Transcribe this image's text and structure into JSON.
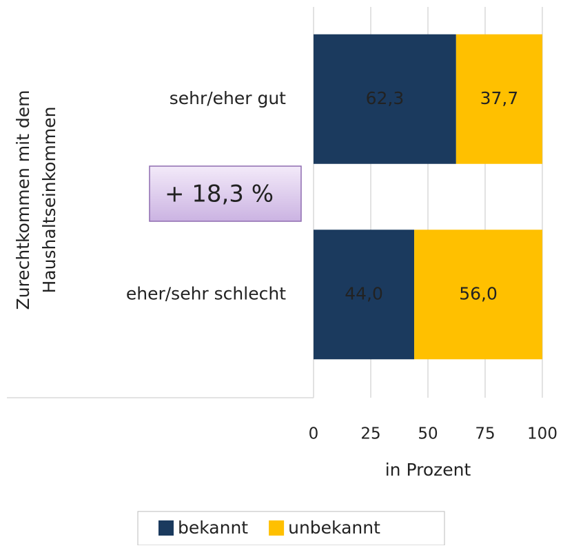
{
  "chart_data": {
    "type": "stacked_barh",
    "ylabel": [
      "Zurechtkommen mit dem",
      "Haushaltseinkommen"
    ],
    "xlabel": "in Prozent",
    "annotation": "+ 18,3 %",
    "categories": [
      "sehr/eher gut",
      "eher/sehr schlecht"
    ],
    "series": [
      {
        "name": "bekannt",
        "color": "#1b3a5e",
        "values": [
          62.3,
          44.0
        ],
        "value_labels": [
          "62,3",
          "44,0"
        ]
      },
      {
        "name": "unbekannt",
        "color": "#ffc000",
        "values": [
          37.7,
          56.0
        ],
        "value_labels": [
          "37,7",
          "56,0"
        ]
      }
    ],
    "xlim": [
      0,
      100
    ],
    "xticks": [
      0,
      25,
      50,
      75,
      100
    ],
    "grid": true,
    "legend": "bottom"
  }
}
